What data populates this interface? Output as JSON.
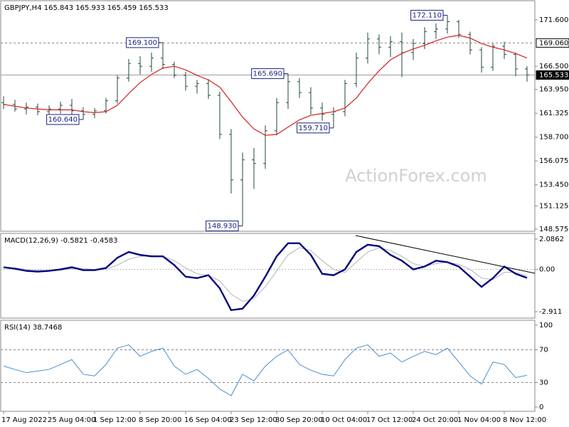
{
  "chart_data": [
    {
      "type": "ohlc",
      "title": "GBPJPY,H4  165.843 165.933 165.459 165.533",
      "watermark": "ActionForex.com",
      "categories": [
        "17 Aug 2022",
        null,
        null,
        null,
        "25 Aug 04:00",
        null,
        null,
        null,
        "1 Sep 12:00",
        null,
        null,
        null,
        "8 Sep 20:00",
        null,
        null,
        null,
        "16 Sep 04:00",
        null,
        null,
        null,
        "23 Sep 12:00",
        null,
        null,
        null,
        "30 Sep 20:00",
        null,
        null,
        null,
        "10 Oct 04:00",
        null,
        null,
        null,
        "17 Oct 12:00",
        null,
        null,
        null,
        "24 Oct 20:00",
        null,
        null,
        null,
        "1 Nov 04:00",
        null,
        null,
        null,
        "8 Nov 12:00",
        null,
        null
      ],
      "open": [
        162.5,
        162.3,
        161.8,
        162.0,
        161.5,
        161.8,
        162.2,
        161.6,
        161.2,
        161.6,
        162.7,
        165.2,
        166.8,
        166.5,
        167.4,
        166.7,
        165.5,
        164.3,
        164.6,
        163.3,
        159.0,
        154.0,
        156.2,
        155.8,
        159.4,
        162.5,
        164.8,
        163.6,
        161.9,
        161.2,
        161.5,
        164.6,
        167.4,
        169.5,
        168.6,
        169.2,
        168.0,
        169.0,
        170.3,
        170.6,
        171.4,
        170.0,
        168.3,
        166.4,
        168.7,
        167.8,
        166.2
      ],
      "high": [
        163.2,
        162.8,
        162.5,
        162.4,
        162.2,
        162.6,
        162.9,
        162.0,
        161.9,
        163.0,
        165.5,
        167.3,
        167.6,
        168.0,
        169.1,
        167.0,
        165.9,
        165.0,
        165.1,
        163.7,
        159.6,
        157.0,
        157.5,
        160.0,
        163.0,
        165.69,
        165.2,
        164.2,
        162.5,
        162.0,
        165.0,
        168.0,
        170.2,
        170.0,
        169.8,
        170.2,
        169.5,
        170.8,
        171.2,
        172.11,
        171.6,
        170.3,
        168.6,
        169.0,
        169.2,
        168.0,
        166.5
      ],
      "low": [
        161.8,
        161.5,
        161.2,
        161.1,
        161.0,
        161.3,
        161.2,
        160.64,
        160.8,
        161.3,
        162.4,
        164.8,
        165.6,
        165.9,
        166.2,
        165.2,
        163.8,
        163.5,
        162.9,
        158.5,
        152.5,
        148.93,
        153.0,
        155.2,
        158.9,
        161.8,
        163.0,
        161.2,
        160.5,
        159.71,
        161.0,
        164.2,
        166.8,
        167.8,
        167.5,
        165.3,
        167.2,
        168.4,
        169.5,
        170.1,
        169.6,
        167.8,
        165.8,
        166.0,
        167.3,
        165.4,
        164.8
      ],
      "close": [
        162.3,
        161.8,
        162.0,
        161.5,
        161.8,
        162.2,
        161.6,
        161.2,
        161.6,
        162.7,
        165.2,
        166.8,
        166.5,
        167.4,
        166.7,
        165.5,
        164.3,
        164.6,
        163.3,
        159.0,
        154.0,
        156.2,
        155.8,
        159.4,
        162.5,
        164.8,
        163.6,
        161.9,
        161.2,
        161.5,
        164.6,
        167.4,
        169.5,
        168.6,
        169.2,
        168.0,
        169.0,
        170.3,
        170.6,
        171.4,
        170.0,
        168.3,
        166.4,
        168.7,
        167.8,
        166.2,
        165.533
      ],
      "color": "#1f4a3c",
      "overlays": [
        {
          "color": "#d42020",
          "values": [
            162.3,
            162.1,
            161.9,
            161.8,
            161.7,
            161.7,
            161.7,
            161.5,
            161.4,
            161.5,
            162.2,
            163.5,
            164.7,
            165.6,
            166.3,
            166.5,
            166.1,
            165.5,
            165.0,
            164.2,
            162.6,
            160.9,
            159.6,
            158.9,
            159.0,
            159.8,
            160.6,
            161.1,
            161.3,
            161.5,
            161.9,
            163.0,
            164.6,
            166.0,
            167.2,
            167.9,
            168.4,
            168.8,
            169.3,
            169.7,
            169.9,
            169.6,
            169.0,
            168.6,
            168.3,
            167.9,
            167.4
          ]
        }
      ],
      "hlines": [
        {
          "value": 169.06,
          "label": "169.060",
          "style": "dashed"
        },
        {
          "value": 165.533,
          "label": "165.533",
          "style": "solid"
        }
      ],
      "annotations": [
        {
          "value": 172.11,
          "label": "172.110"
        },
        {
          "value": 169.1,
          "label": "169.100"
        },
        {
          "value": 165.69,
          "label": "165.690"
        },
        {
          "value": 160.64,
          "label": "160.640"
        },
        {
          "value": 159.71,
          "label": "159.710"
        },
        {
          "value": 148.93,
          "label": "148.930"
        }
      ],
      "ylim": [
        148.34,
        173.71
      ],
      "yticks": [
        {
          "value": 171.6,
          "label": "171.600"
        },
        {
          "value": 166.5,
          "label": "166.500"
        },
        {
          "value": 163.95,
          "label": "163.950"
        },
        {
          "value": 161.325,
          "label": "161.325"
        },
        {
          "value": 158.7,
          "label": "158.700"
        },
        {
          "value": 156.075,
          "label": "156.075"
        },
        {
          "value": 153.45,
          "label": "153.450"
        },
        {
          "value": 151.125,
          "label": "151.125"
        },
        {
          "value": 148.575,
          "label": "148.575"
        }
      ]
    },
    {
      "type": "line",
      "title": "MACD(12,26,9) -0.5821 -0.4583",
      "series": [
        {
          "color": "#000080",
          "values": [
            0.15,
            0.05,
            -0.1,
            -0.15,
            -0.1,
            0.0,
            0.15,
            -0.05,
            -0.05,
            0.1,
            0.8,
            1.2,
            1.0,
            0.9,
            0.9,
            0.3,
            -0.5,
            -0.6,
            -0.4,
            -1.3,
            -2.8,
            -2.7,
            -1.8,
            -0.5,
            0.9,
            1.8,
            1.8,
            1.0,
            -0.3,
            -0.4,
            0.0,
            1.2,
            1.7,
            1.6,
            1.0,
            0.6,
            0.0,
            0.2,
            0.6,
            0.5,
            0.2,
            -0.5,
            -1.2,
            -0.6,
            0.2,
            -0.3,
            -0.5821
          ]
        },
        {
          "color": "#b4b4b4",
          "values": [
            0.1,
            0.1,
            0.0,
            -0.05,
            -0.1,
            -0.05,
            0.05,
            0.05,
            0.0,
            0.0,
            0.3,
            0.7,
            0.9,
            0.95,
            0.9,
            0.6,
            0.1,
            -0.3,
            -0.4,
            -0.8,
            -1.7,
            -2.2,
            -2.0,
            -1.2,
            -0.1,
            1.0,
            1.5,
            1.3,
            0.6,
            0.0,
            -0.2,
            0.5,
            1.2,
            1.5,
            1.3,
            0.9,
            0.4,
            0.2,
            0.4,
            0.5,
            0.35,
            0.0,
            -0.6,
            -0.7,
            -0.2,
            -0.2,
            -0.4583
          ]
        }
      ],
      "hlines": [
        {
          "value": 0,
          "style": "dotted"
        }
      ],
      "ylim": [
        -3.35,
        2.476
      ],
      "yticks": [
        {
          "value": 2.0862,
          "label": "2.0862"
        },
        {
          "value": 0,
          "label": "0.00"
        },
        -2.911
      ]
    },
    {
      "type": "line",
      "title": "RSI(14) 38.7468",
      "series": [
        {
          "color": "#4a8fd0",
          "values": [
            50,
            46,
            42,
            44,
            46,
            52,
            58,
            40,
            38,
            52,
            72,
            76,
            62,
            68,
            72,
            50,
            40,
            46,
            35,
            22,
            14,
            40,
            32,
            50,
            62,
            70,
            52,
            45,
            40,
            38,
            58,
            72,
            76,
            62,
            66,
            55,
            62,
            68,
            64,
            72,
            55,
            38,
            28,
            55,
            52,
            36,
            38.7468
          ]
        }
      ],
      "hlines": [
        {
          "value": 70,
          "style": "dashed"
        },
        {
          "value": 30,
          "style": "dashed"
        }
      ],
      "ylim": [
        -5.2,
        106
      ],
      "yticks": [
        100,
        70,
        30,
        0
      ]
    }
  ]
}
